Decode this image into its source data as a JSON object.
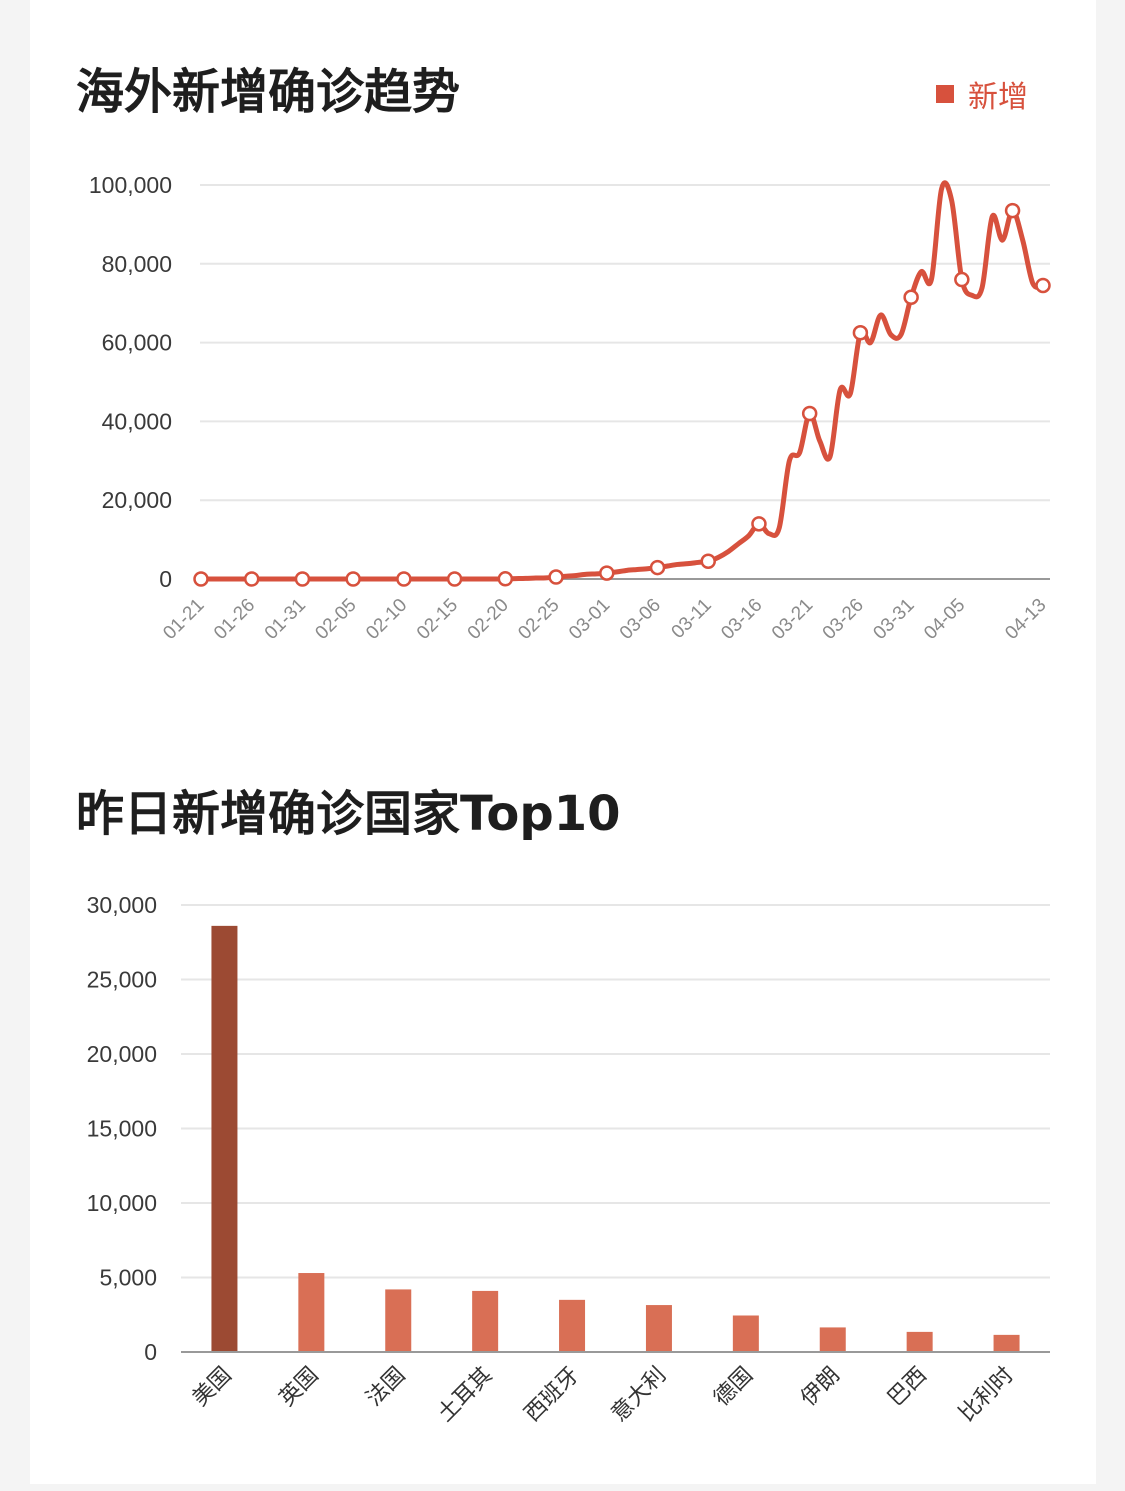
{
  "colors": {
    "line": "#d7513d",
    "bar": "#d96f55",
    "bar_highlight": "#9c4a33",
    "grid": "#e6e6e6",
    "axis": "#999999"
  },
  "chart_data": [
    {
      "type": "line",
      "title": "海外新增确诊趋势",
      "legend": {
        "position": "top-right",
        "entries": [
          "新增"
        ]
      },
      "ylim": [
        0,
        100000
      ],
      "y_ticks": [
        "0",
        "20,000",
        "40,000",
        "60,000",
        "80,000",
        "100,000"
      ],
      "x_ticks": [
        "01-21",
        "01-26",
        "01-31",
        "02-05",
        "02-10",
        "02-15",
        "02-20",
        "02-25",
        "03-01",
        "03-06",
        "03-11",
        "03-16",
        "03-21",
        "03-26",
        "03-31",
        "04-05",
        "04-13"
      ],
      "grid": true,
      "series": [
        {
          "name": "新增",
          "x": [
            "01-21",
            "01-22",
            "01-23",
            "01-24",
            "01-25",
            "01-26",
            "01-27",
            "01-28",
            "01-29",
            "01-30",
            "01-31",
            "02-01",
            "02-02",
            "02-03",
            "02-04",
            "02-05",
            "02-06",
            "02-07",
            "02-08",
            "02-09",
            "02-10",
            "02-11",
            "02-12",
            "02-13",
            "02-14",
            "02-15",
            "02-16",
            "02-17",
            "02-18",
            "02-19",
            "02-20",
            "02-21",
            "02-22",
            "02-23",
            "02-24",
            "02-25",
            "02-26",
            "02-27",
            "02-28",
            "02-29",
            "03-01",
            "03-02",
            "03-03",
            "03-04",
            "03-05",
            "03-06",
            "03-07",
            "03-08",
            "03-09",
            "03-10",
            "03-11",
            "03-12",
            "03-13",
            "03-14",
            "03-15",
            "03-16",
            "03-17",
            "03-18",
            "03-19",
            "03-20",
            "03-21",
            "03-22",
            "03-23",
            "03-24",
            "03-25",
            "03-26",
            "03-27",
            "03-28",
            "03-29",
            "03-30",
            "03-31",
            "04-01",
            "04-02",
            "04-03",
            "04-04",
            "04-05",
            "04-06",
            "04-07",
            "04-08",
            "04-09",
            "04-10",
            "04-11",
            "04-12",
            "04-13"
          ],
          "values": [
            0,
            0,
            0,
            0,
            0,
            0,
            0,
            0,
            0,
            0,
            0,
            0,
            0,
            0,
            0,
            0,
            0,
            0,
            0,
            0,
            0,
            0,
            0,
            0,
            0,
            0,
            0,
            0,
            0,
            0,
            50,
            100,
            150,
            250,
            300,
            500,
            700,
            900,
            1200,
            1300,
            1500,
            1800,
            2200,
            2400,
            2600,
            2900,
            3300,
            3700,
            3900,
            4200,
            4500,
            5500,
            7000,
            9000,
            11000,
            14000,
            11500,
            13000,
            30000,
            32000,
            42000,
            35000,
            31000,
            48000,
            47000,
            62500,
            60000,
            67000,
            62000,
            62000,
            71500,
            78000,
            76000,
            99000,
            96000,
            76000,
            72000,
            74000,
            92000,
            86000,
            93500,
            86000,
            75000,
            74500
          ],
          "marked_x": [
            "01-21",
            "01-26",
            "01-31",
            "02-05",
            "02-10",
            "02-15",
            "02-20",
            "02-25",
            "03-01",
            "03-06",
            "03-11",
            "03-16",
            "03-21",
            "03-26",
            "03-31",
            "04-05",
            "04-10",
            "04-13"
          ]
        }
      ]
    },
    {
      "type": "bar",
      "title": "昨日新增确诊国家Top10",
      "ylim": [
        0,
        30000
      ],
      "y_ticks": [
        "0",
        "5,000",
        "10,000",
        "15,000",
        "20,000",
        "25,000",
        "30,000"
      ],
      "grid": true,
      "categories": [
        "美国",
        "英国",
        "法国",
        "土耳其",
        "西班牙",
        "意大利",
        "德国",
        "伊朗",
        "巴西",
        "比利时"
      ],
      "values": [
        28600,
        5300,
        4200,
        4100,
        3500,
        3150,
        2450,
        1650,
        1350,
        1150
      ],
      "highlight_index": 0
    }
  ]
}
